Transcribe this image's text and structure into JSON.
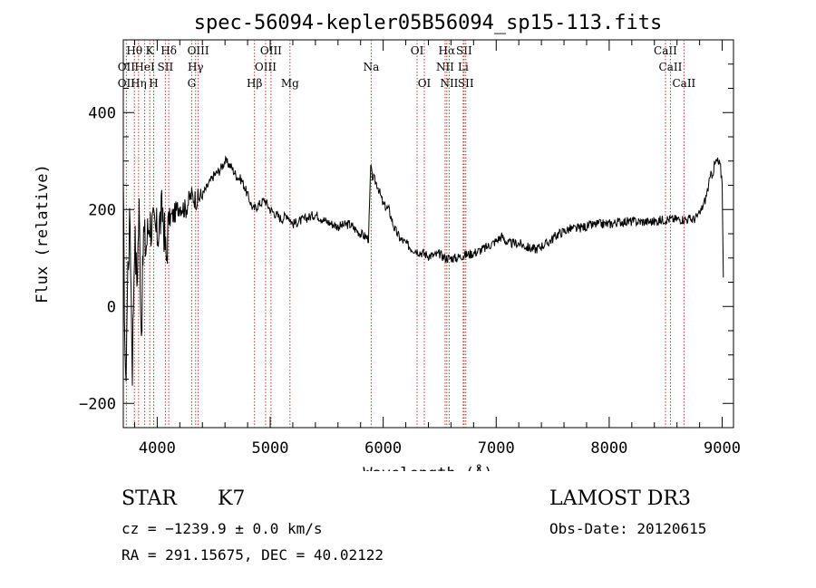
{
  "chart_data": {
    "type": "line",
    "title": "spec-56094-kepler05B56094_sp15-113.fits",
    "xlabel": "Wavelength (Å)",
    "ylabel": "Flux (relative)",
    "xlim": [
      3700,
      9100
    ],
    "ylim": [
      -250,
      550
    ],
    "xticks": [
      4000,
      5000,
      6000,
      7000,
      8000,
      9000
    ],
    "xtick_labels": [
      "4000",
      "5000",
      "6000",
      "7000",
      "8000",
      "9000"
    ],
    "yticks": [
      -200,
      0,
      200,
      400
    ],
    "ytick_labels": [
      "−200",
      "0",
      "200",
      "400"
    ],
    "series": [
      {
        "name": "flux",
        "x": [
          3700,
          3720,
          3740,
          3760,
          3780,
          3800,
          3820,
          3840,
          3860,
          3880,
          3900,
          3930,
          3960,
          4000,
          4050,
          4080,
          4100,
          4150,
          4200,
          4250,
          4300,
          4350,
          4400,
          4450,
          4500,
          4550,
          4600,
          4650,
          4700,
          4750,
          4800,
          4850,
          4900,
          4950,
          5000,
          5050,
          5100,
          5150,
          5200,
          5300,
          5400,
          5500,
          5600,
          5700,
          5800,
          5870,
          5890,
          5900,
          5950,
          6000,
          6050,
          6100,
          6150,
          6200,
          6250,
          6300,
          6350,
          6400,
          6450,
          6500,
          6550,
          6600,
          6650,
          6700,
          6800,
          6900,
          7000,
          7050,
          7100,
          7150,
          7200,
          7250,
          7300,
          7350,
          7400,
          7450,
          7500,
          7550,
          7600,
          7650,
          7700,
          7800,
          7900,
          8000,
          8100,
          8200,
          8300,
          8400,
          8500,
          8600,
          8700,
          8750,
          8800,
          8850,
          8900,
          8950,
          8980,
          9000,
          9010
        ],
        "y": [
          220,
          -180,
          80,
          180,
          -120,
          150,
          50,
          200,
          -50,
          150,
          120,
          180,
          160,
          150,
          200,
          90,
          180,
          190,
          210,
          200,
          230,
          220,
          230,
          250,
          270,
          280,
          300,
          290,
          270,
          260,
          230,
          200,
          210,
          220,
          200,
          190,
          180,
          190,
          170,
          180,
          190,
          175,
          165,
          170,
          150,
          140,
          290,
          270,
          250,
          210,
          200,
          160,
          140,
          130,
          120,
          115,
          110,
          105,
          105,
          108,
          100,
          100,
          100,
          105,
          110,
          120,
          135,
          145,
          130,
          130,
          130,
          125,
          120,
          118,
          125,
          130,
          140,
          150,
          155,
          160,
          160,
          165,
          170,
          170,
          175,
          175,
          175,
          175,
          180,
          180,
          180,
          180,
          190,
          220,
          270,
          300,
          290,
          260,
          60
        ]
      }
    ],
    "line_markers": [
      {
        "label": "Hθ",
        "x": 3798,
        "row": 0
      },
      {
        "label": "OII",
        "x": 3727,
        "row": 1
      },
      {
        "label": "OII",
        "x": 3727,
        "row": 2
      },
      {
        "label": "Hη",
        "x": 3835,
        "row": 2
      },
      {
        "label": "K",
        "x": 3934,
        "row": 0
      },
      {
        "label": "HeI",
        "x": 3889,
        "row": 1
      },
      {
        "label": "SII",
        "x": 4072,
        "row": 1
      },
      {
        "label": "H",
        "x": 3969,
        "row": 2
      },
      {
        "label": "Hδ",
        "x": 4102,
        "row": 0
      },
      {
        "label": "OIII",
        "x": 4363,
        "row": 0
      },
      {
        "label": "Hγ",
        "x": 4340,
        "row": 1
      },
      {
        "label": "G",
        "x": 4305,
        "row": 2
      },
      {
        "label": "OIII",
        "x": 5007,
        "row": 0
      },
      {
        "label": "OIII",
        "x": 4959,
        "row": 1
      },
      {
        "label": "Hβ",
        "x": 4861,
        "row": 2
      },
      {
        "label": "Mg",
        "x": 5175,
        "row": 2
      },
      {
        "label": "Na",
        "x": 5894,
        "row": 1
      },
      {
        "label": "OI",
        "x": 6300,
        "row": 0
      },
      {
        "label": "OI",
        "x": 6364,
        "row": 2
      },
      {
        "label": "Hα",
        "x": 6563,
        "row": 0
      },
      {
        "label": "SII",
        "x": 6716,
        "row": 0
      },
      {
        "label": "NII",
        "x": 6548,
        "row": 1
      },
      {
        "label": "Li",
        "x": 6708,
        "row": 1
      },
      {
        "label": "NII",
        "x": 6584,
        "row": 2
      },
      {
        "label": "SII",
        "x": 6731,
        "row": 2
      },
      {
        "label": "CaII",
        "x": 8498,
        "row": 0
      },
      {
        "label": "CaII",
        "x": 8542,
        "row": 1
      },
      {
        "label": "CaII",
        "x": 8662,
        "row": 2
      }
    ]
  },
  "info": {
    "class": "STAR",
    "subclass": "K7",
    "survey": "LAMOST DR3",
    "cz": "cz = −1239.9 ± 0.0 km/s",
    "obs_date": "Obs-Date: 20120615",
    "radec": "RA = 291.15675, DEC =  40.02122"
  },
  "colors": {
    "marker": "#b33a2e",
    "line": "#000000"
  }
}
